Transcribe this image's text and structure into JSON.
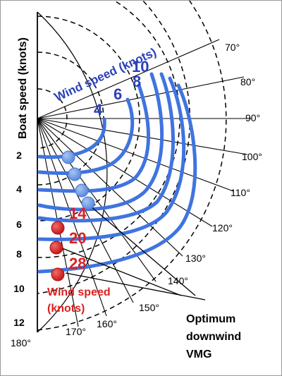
{
  "axis": {
    "ylabel": "Boat speed (knots)",
    "speed_ticks": [
      "2",
      "4",
      "6",
      "8",
      "10",
      "12"
    ],
    "angle_ticks": [
      "70°",
      "80°",
      "90°",
      "100°",
      "110°",
      "120°",
      "130°",
      "140°",
      "150°",
      "160°",
      "170°",
      "180°"
    ]
  },
  "wind_speed_title_blue": "Wind speed (knots)",
  "blue_curve_labels": [
    "4",
    "6",
    "8",
    "10"
  ],
  "red_curve_labels": [
    "14",
    "20",
    "28"
  ],
  "wind_speed_title_red_line1": "Wind speed",
  "wind_speed_title_red_line2": "(knots)",
  "annotation": {
    "line1": "Optimum",
    "line2": "downwind",
    "line3": "VMG"
  },
  "colors": {
    "curves": "#3f74e0",
    "blue_text": "#2a3fb8",
    "red": "#dd1f1f",
    "blue_marker": "#6f9be6",
    "grid": "#000000"
  }
}
